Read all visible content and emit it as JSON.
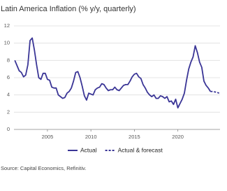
{
  "chart_data": {
    "type": "line",
    "title": "Latin America Inflation (% y/y, quarterly)",
    "x": [
      2001.25,
      2001.5,
      2001.75,
      2002,
      2002.25,
      2002.5,
      2002.75,
      2003,
      2003.25,
      2003.5,
      2003.75,
      2004,
      2004.25,
      2004.5,
      2004.75,
      2005,
      2005.25,
      2005.5,
      2005.75,
      2006,
      2006.25,
      2006.5,
      2006.75,
      2007,
      2007.25,
      2007.5,
      2007.75,
      2008,
      2008.25,
      2008.5,
      2008.75,
      2009,
      2009.25,
      2009.5,
      2009.75,
      2010,
      2010.25,
      2010.5,
      2010.75,
      2011,
      2011.25,
      2011.5,
      2011.75,
      2012,
      2012.25,
      2012.5,
      2012.75,
      2013,
      2013.25,
      2013.5,
      2013.75,
      2014,
      2014.25,
      2014.5,
      2014.75,
      2015,
      2015.25,
      2015.5,
      2015.75,
      2016,
      2016.25,
      2016.5,
      2016.75,
      2017,
      2017.25,
      2017.5,
      2017.75,
      2018,
      2018.25,
      2018.5,
      2018.75,
      2019,
      2019.25,
      2019.5,
      2019.75,
      2020,
      2020.25,
      2020.5,
      2020.75,
      2021,
      2021.25,
      2021.5,
      2021.75,
      2022,
      2022.25,
      2022.5,
      2022.75,
      2023,
      2023.25,
      2023.5,
      2023.75,
      2024,
      2024.25,
      2024.5,
      2024.75
    ],
    "series": [
      {
        "name": "Actual",
        "color": "#3a3596",
        "dash": false,
        "values": [
          8.0,
          7.4,
          6.8,
          6.6,
          6.1,
          6.3,
          7.5,
          10.3,
          10.6,
          9.2,
          7.5,
          6.0,
          5.8,
          6.5,
          6.5,
          5.8,
          5.7,
          4.9,
          4.8,
          4.8,
          4.0,
          3.8,
          3.6,
          3.7,
          4.2,
          4.4,
          4.8,
          5.6,
          6.6,
          6.7,
          6.0,
          5.0,
          3.9,
          3.4,
          4.2,
          4.1,
          4.0,
          4.6,
          4.8,
          4.9,
          5.3,
          5.2,
          4.8,
          4.5,
          4.6,
          4.6,
          4.9,
          4.6,
          4.5,
          4.8,
          5.1,
          5.2,
          5.2,
          5.6,
          6.1,
          6.4,
          6.5,
          6.1,
          5.9,
          5.2,
          4.8,
          4.3,
          4.0,
          3.8,
          4.0,
          3.6,
          3.6,
          3.9,
          3.8,
          3.6,
          3.8,
          3.2,
          3.3,
          2.9,
          3.5,
          2.5,
          3.0,
          3.5,
          4.2,
          5.7,
          7.0,
          7.8,
          8.4,
          9.7,
          8.9,
          7.8,
          7.2,
          5.6,
          5.1,
          4.8,
          4.4,
          null,
          null,
          null,
          null
        ]
      },
      {
        "name": "Actual & forecast",
        "color": "#3a3596",
        "dash": true,
        "values": [
          null,
          null,
          null,
          null,
          null,
          null,
          null,
          null,
          null,
          null,
          null,
          null,
          null,
          null,
          null,
          null,
          null,
          null,
          null,
          null,
          null,
          null,
          null,
          null,
          null,
          null,
          null,
          null,
          null,
          null,
          null,
          null,
          null,
          null,
          null,
          null,
          null,
          null,
          null,
          null,
          null,
          null,
          null,
          null,
          null,
          null,
          null,
          null,
          null,
          null,
          null,
          null,
          null,
          null,
          null,
          null,
          null,
          null,
          null,
          null,
          null,
          null,
          null,
          null,
          null,
          null,
          null,
          null,
          null,
          null,
          null,
          null,
          null,
          null,
          null,
          null,
          null,
          null,
          null,
          null,
          null,
          null,
          null,
          null,
          null,
          null,
          null,
          null,
          null,
          null,
          4.4,
          4.4,
          4.35,
          4.3,
          4.2
        ]
      }
    ],
    "xlim": [
      2001.15,
      2024.85
    ],
    "xticks": [
      2005,
      2010,
      2015,
      2020
    ],
    "ylim": [
      0,
      12
    ],
    "yticks": [
      0,
      2,
      4,
      6,
      8,
      10,
      12
    ],
    "grid": true,
    "source": "Source: Capital Economics, Refinitiv."
  }
}
